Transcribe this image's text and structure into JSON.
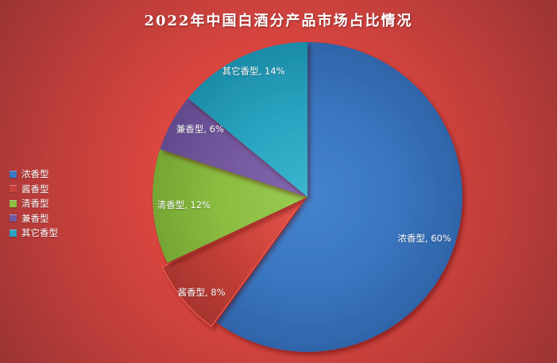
{
  "colors": {
    "background_stops": [
      "#e6504a",
      "#d9453f",
      "#bc3d3a",
      "#9b3434"
    ],
    "title_text": "#ffffff",
    "label_text": "#ffffff"
  },
  "chart_data": {
    "type": "pie",
    "title": "2022年中国白酒分产品市场占比情况",
    "start_angle_deg": 0,
    "direction": "clockwise",
    "legend_position": "left",
    "labels_format": "name, percent",
    "series": [
      {
        "id": "nongxiang",
        "name": "浓香型",
        "value": 60,
        "label": "浓香型, 60%",
        "color": "#3a76c0",
        "gradient": {
          "inner": "#4583cd",
          "mid": "#3a76c0",
          "outer": "#2e63a8"
        },
        "exploded": false
      },
      {
        "id": "jiangxiang",
        "name": "酱香型",
        "value": 8,
        "label": "酱香型, 8%",
        "color": "#c7413a",
        "gradient": {
          "inner": "#e5544b",
          "mid": "#c64038",
          "outer": "#a5342e"
        },
        "exploded": true
      },
      {
        "id": "qingxiang",
        "name": "清香型",
        "value": 12,
        "label": "清香型, 12%",
        "color": "#8abd40",
        "gradient": {
          "inner": "#98cb52",
          "mid": "#8abd40",
          "outer": "#74a332"
        },
        "exploded": false
      },
      {
        "id": "jianxiang",
        "name": "兼香型",
        "value": 6,
        "label": "兼香型, 6%",
        "color": "#74599f",
        "gradient": {
          "inner": "#8168b0",
          "mid": "#74599f",
          "outer": "#61498c"
        },
        "exploded": false
      },
      {
        "id": "qita",
        "name": "其它香型",
        "value": 14,
        "label": "其它香型, 14%",
        "color": "#28a3bf",
        "gradient": {
          "inner": "#3cb6cf",
          "mid": "#28a3bf",
          "outer": "#1b8aa5"
        },
        "exploded": false
      }
    ]
  }
}
